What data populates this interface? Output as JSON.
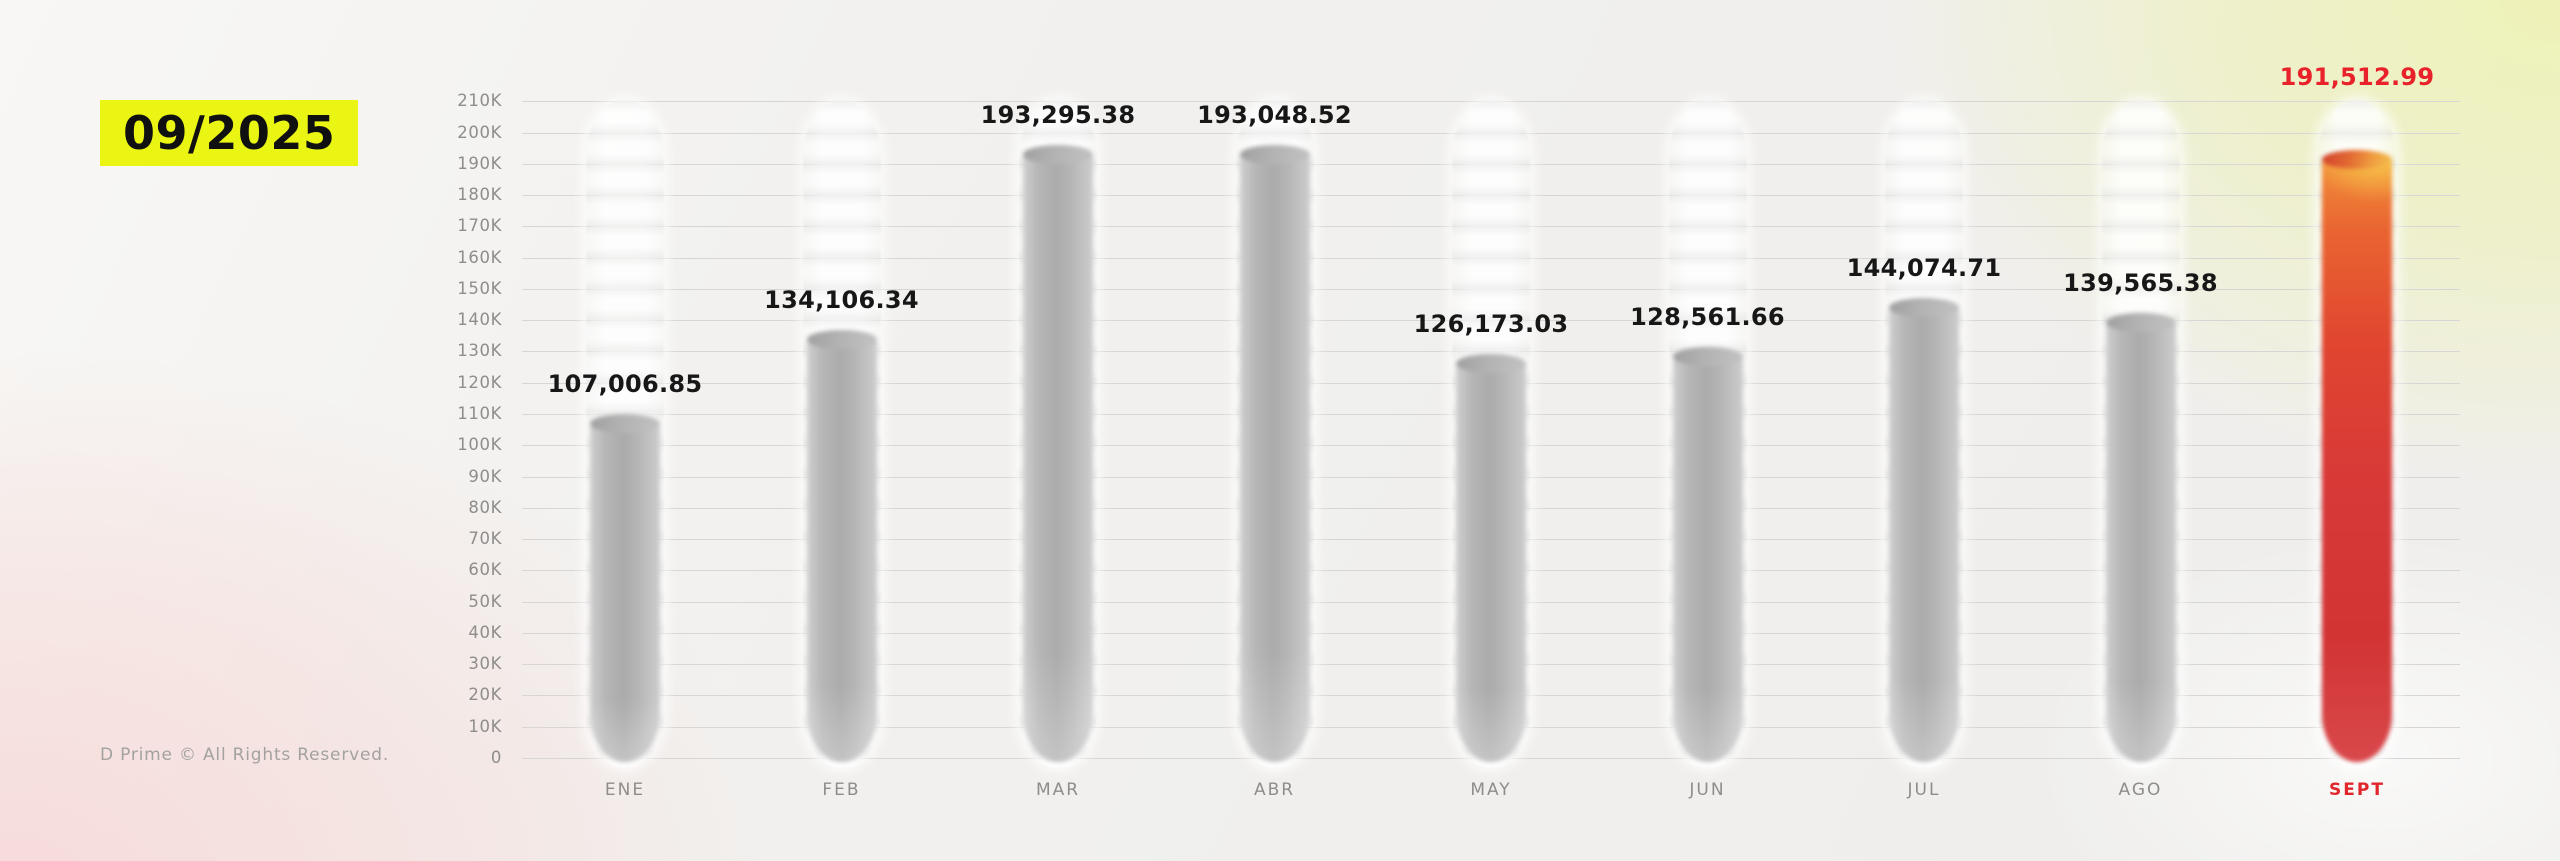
{
  "title": {
    "period": "09/2025"
  },
  "footer": {
    "copyright": "D Prime © All Rights Reserved."
  },
  "chart_data": {
    "type": "bar",
    "title": "09/2025",
    "categories": [
      "ENE",
      "FEB",
      "MAR",
      "ABR",
      "MAY",
      "JUN",
      "JUL",
      "AGO",
      "SEPT"
    ],
    "values": [
      107006.85,
      134106.34,
      193295.38,
      193048.52,
      126173.03,
      128561.66,
      144074.71,
      139565.38,
      191512.99
    ],
    "value_labels": [
      "107,006.85",
      "134,106.34",
      "193,295.38",
      "193,048.52",
      "126,173.03",
      "128,561.66",
      "144,074.71",
      "139,565.38",
      "191,512.99"
    ],
    "highlight_index": 8,
    "xlabel": "",
    "ylabel": "",
    "ylim": [
      0,
      210000
    ],
    "y_ticks": [
      "0",
      "10K",
      "20K",
      "30K",
      "40K",
      "50K",
      "60K",
      "70K",
      "80K",
      "90K",
      "100K",
      "110K",
      "120K",
      "130K",
      "140K",
      "150K",
      "160K",
      "170K",
      "180K",
      "190K",
      "200K",
      "210K"
    ],
    "grid": true,
    "legend": false,
    "colors": {
      "bar_gray": "#b5b5b5",
      "highlight_top": "#f2953c",
      "highlight_bottom": "#d23434",
      "highlight_text": "#e8212a",
      "value_text": "#171717",
      "axis_text": "#8e8d8b",
      "gridline": "#d7d6d4",
      "title_bg": "#ebf513",
      "background": "#f0efed"
    }
  }
}
